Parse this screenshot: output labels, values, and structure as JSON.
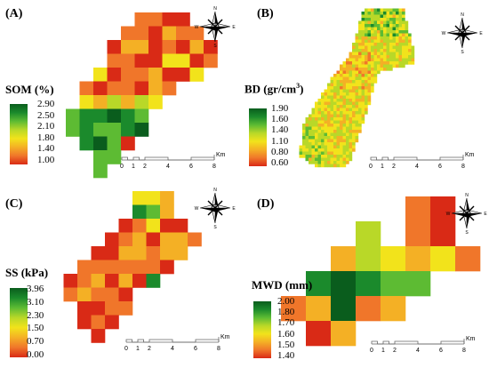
{
  "colors": {
    "ramp": [
      "#d92a16",
      "#f0762a",
      "#f4b025",
      "#f2e31b",
      "#b9d828",
      "#5dbb33",
      "#1b8a2c",
      "#0a5d1d"
    ]
  },
  "compass": {
    "n": "N",
    "s": "S",
    "e": "E",
    "w": "W"
  },
  "scalebar": {
    "labels": [
      "0",
      "1",
      "2",
      "4",
      "6",
      "8"
    ],
    "unit": "Km"
  },
  "panels": [
    {
      "id": "A",
      "label": "(A)",
      "variable": "SOM (%)",
      "superscript": "",
      "legend_ticks": [
        "2.90",
        "2.50",
        "2.10",
        "1.80",
        "1.40",
        "1.00"
      ]
    },
    {
      "id": "B",
      "label": "(B)",
      "variable": "BD (gr/cm",
      "superscript": "3",
      "variable_suffix": ")",
      "legend_ticks": [
        "1.90",
        "1.60",
        "1.40",
        "1.10",
        "0.80",
        "0.60"
      ]
    },
    {
      "id": "C",
      "label": "(C)",
      "variable": "SS (kPa)",
      "superscript": "",
      "legend_ticks": [
        "3.96",
        "3.10",
        "2.30",
        "1.50",
        "0.70",
        "0.00"
      ]
    },
    {
      "id": "D",
      "label": "(D)",
      "variable": "MWD (mm)",
      "superscript": "",
      "legend_ticks": [
        "2.00",
        "1.80",
        "1.70",
        "1.60",
        "1.50",
        "1.40"
      ]
    }
  ]
}
